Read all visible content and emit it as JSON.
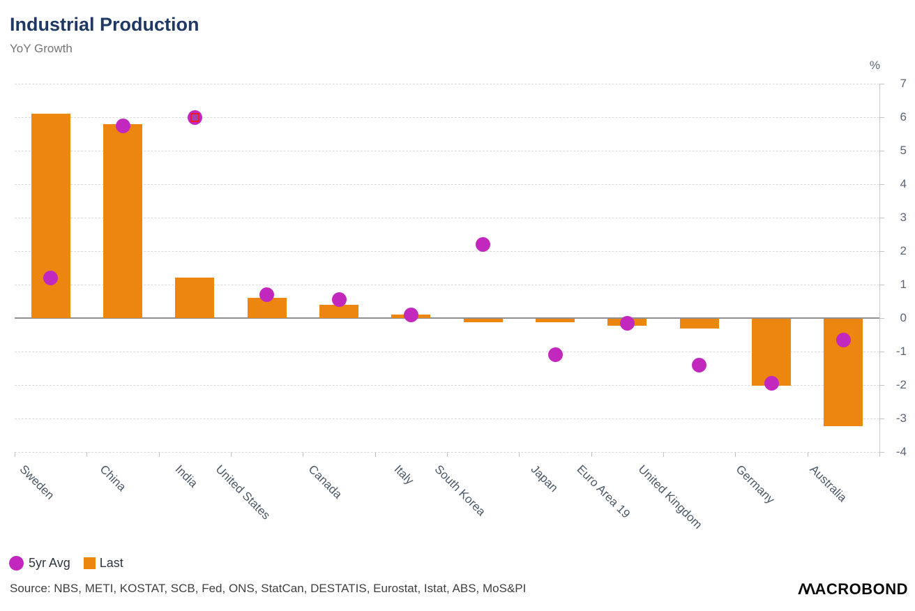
{
  "header": {
    "title": "Industrial Production",
    "subtitle": "YoY Growth"
  },
  "axis": {
    "unit_label": "%",
    "y_ticks": [
      7,
      6,
      5,
      4,
      3,
      2,
      1,
      0,
      -1,
      -2,
      -3,
      -4
    ]
  },
  "chart_data": {
    "type": "bar",
    "title": "Industrial Production",
    "subtitle": "YoY Growth",
    "ylabel": "%",
    "ylim": [
      -4,
      7
    ],
    "grid": "horizontal dashed, solid zero line",
    "legend_position": "bottom-left",
    "categories": [
      "Sweden",
      "China",
      "India",
      "United States",
      "Canada",
      "Italy",
      "South Korea",
      "Japan",
      "Euro Area 19",
      "United Kingdom",
      "Germany",
      "Australia"
    ],
    "series": [
      {
        "name": "5yr Avg",
        "type": "scatter",
        "color": "#c328be",
        "values": [
          1.2,
          5.75,
          6.0,
          0.7,
          0.55,
          0.1,
          2.2,
          -1.1,
          -0.15,
          -1.4,
          -1.95,
          -0.65
        ]
      },
      {
        "name": "Last",
        "type": "bar",
        "color": "#ed860e",
        "values": [
          6.1,
          5.8,
          1.2,
          0.6,
          0.4,
          0.1,
          -0.1,
          -0.1,
          -0.2,
          -0.3,
          -2.0,
          -3.2
        ]
      }
    ],
    "highlight": {
      "series": "5yr Avg",
      "category": "India",
      "marker": "red-square-selection"
    }
  },
  "legend": {
    "items": [
      {
        "label": "5yr Avg",
        "marker": "circle",
        "color": "#c328be"
      },
      {
        "label": "Last",
        "marker": "square",
        "color": "#ed860e"
      }
    ]
  },
  "source": {
    "text": "Source: NBS, METI, KOSTAT, SCB, Fed, ONS, StatCan, DESTATIS, Eurostat, Istat, ABS, MoS&PI"
  },
  "logo": {
    "name": "Macrobond",
    "text": "MACROBOND",
    "m": "ΛΛ",
    "rest": "ACROBOND"
  },
  "colors": {
    "title": "#1f3864",
    "bar": "#ed860e",
    "dot": "#c328be",
    "selection_red": "#ed1c24",
    "gridline": "#d9d9d9",
    "zero_line": "#8f8f8f",
    "axis_text": "#5a6474"
  }
}
